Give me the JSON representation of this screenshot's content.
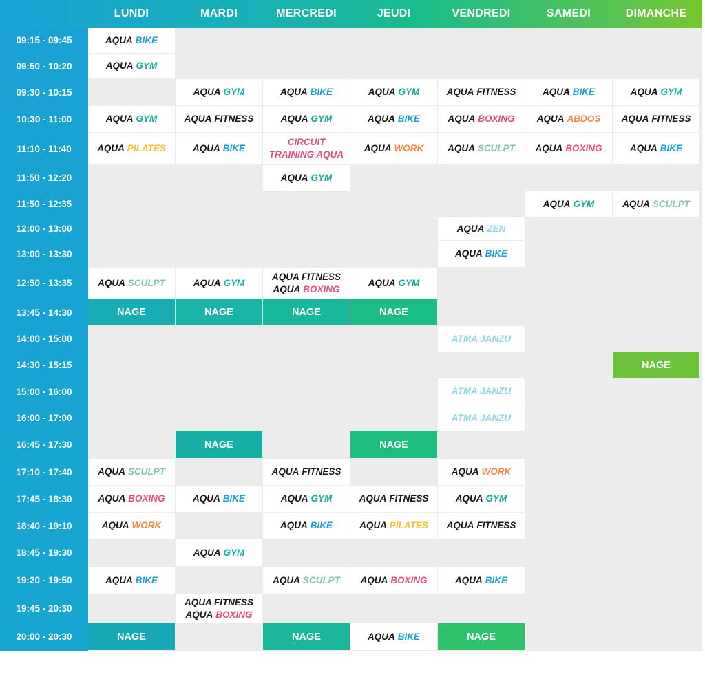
{
  "colors": {
    "header_gradient": [
      "#1aa3d6",
      "#17b0b8",
      "#1bbc8a",
      "#52c258",
      "#78c62e"
    ],
    "time_column": "#1aa2d4",
    "grid_background": "#ececec",
    "class_cell": "#ffffff",
    "AQUA": "#161616",
    "BIKE": "#1e9fd3",
    "GYM": "#17a9a0",
    "FITNESS": "#161616",
    "BOXING": "#e24f7f",
    "ABDOS": "#ef8a44",
    "PILATES": "#f2c12e",
    "WORK": "#ef8a44",
    "SCULPT": "#7fc5a8",
    "ZEN": "#8fd3e8",
    "ATMA JANZU": "#8fd3e8",
    "CIRCUIT TRAINING AQUA": "#e24f7f"
  },
  "days": [
    "LUNDI",
    "MARDI",
    "MERCREDI",
    "JEUDI",
    "VENDREDI",
    "SAMEDI",
    "DIMANCHE"
  ],
  "times": [
    "09:15 - 09:45",
    "09:50 - 10:20",
    "09:30 - 10:15",
    "10:30 - 11:00",
    "11:10 - 11:40",
    "11:50 - 12:20",
    "11:50 - 12:35",
    "12:00 - 13:00",
    "13:00 - 13:30",
    "12:50 - 13:35",
    "13:45 - 14:30",
    "14:00 - 15:00",
    "14:30 - 15:15",
    "15:00 - 16:00",
    "16:00 - 17:00",
    "16:45 - 17:30",
    "17:10 - 17:40",
    "17:45 - 18:30",
    "18:40 - 19:10",
    "18:45 - 19:30",
    "19:20 - 19:50",
    "19:45 - 20:30",
    "20:00 - 20:30"
  ],
  "cells": [
    {
      "r": 0,
      "d": 0,
      "lines": [
        [
          "AQUA",
          "BIKE"
        ]
      ]
    },
    {
      "r": 1,
      "d": 0,
      "lines": [
        [
          "AQUA",
          "GYM"
        ]
      ]
    },
    {
      "r": 2,
      "d": 1,
      "lines": [
        [
          "AQUA",
          "GYM"
        ]
      ]
    },
    {
      "r": 2,
      "d": 2,
      "lines": [
        [
          "AQUA",
          "BIKE"
        ]
      ]
    },
    {
      "r": 2,
      "d": 3,
      "lines": [
        [
          "AQUA",
          "GYM"
        ]
      ]
    },
    {
      "r": 2,
      "d": 4,
      "lines": [
        [
          "AQUA",
          "FITNESS"
        ]
      ]
    },
    {
      "r": 2,
      "d": 5,
      "lines": [
        [
          "AQUA",
          "BIKE"
        ]
      ]
    },
    {
      "r": 2,
      "d": 6,
      "lines": [
        [
          "AQUA",
          "GYM"
        ]
      ]
    },
    {
      "r": 3,
      "d": 0,
      "lines": [
        [
          "AQUA",
          "GYM"
        ]
      ]
    },
    {
      "r": 3,
      "d": 1,
      "lines": [
        [
          "AQUA",
          "FITNESS"
        ]
      ]
    },
    {
      "r": 3,
      "d": 2,
      "lines": [
        [
          "AQUA",
          "GYM"
        ]
      ]
    },
    {
      "r": 3,
      "d": 3,
      "lines": [
        [
          "AQUA",
          "BIKE"
        ]
      ]
    },
    {
      "r": 3,
      "d": 4,
      "lines": [
        [
          "AQUA",
          "BOXING"
        ]
      ]
    },
    {
      "r": 3,
      "d": 5,
      "lines": [
        [
          "AQUA",
          "ABDOS"
        ]
      ]
    },
    {
      "r": 3,
      "d": 6,
      "lines": [
        [
          "AQUA",
          "FITNESS"
        ]
      ]
    },
    {
      "r": 4,
      "d": 0,
      "lines": [
        [
          "AQUA",
          "PILATES"
        ]
      ]
    },
    {
      "r": 4,
      "d": 1,
      "lines": [
        [
          "AQUA",
          "BIKE"
        ]
      ]
    },
    {
      "r": 4,
      "d": 2,
      "lines": [
        [
          "CIRCUIT"
        ],
        [
          "TRAINING AQUA"
        ]
      ],
      "color": "CIRCUIT TRAINING AQUA"
    },
    {
      "r": 4,
      "d": 3,
      "lines": [
        [
          "AQUA",
          "WORK"
        ]
      ]
    },
    {
      "r": 4,
      "d": 4,
      "lines": [
        [
          "AQUA",
          "SCULPT"
        ]
      ]
    },
    {
      "r": 4,
      "d": 5,
      "lines": [
        [
          "AQUA",
          "BOXING"
        ]
      ]
    },
    {
      "r": 4,
      "d": 6,
      "lines": [
        [
          "AQUA",
          "BIKE"
        ]
      ]
    },
    {
      "r": 5,
      "d": 2,
      "lines": [
        [
          "AQUA",
          "GYM"
        ]
      ]
    },
    {
      "r": 6,
      "d": 5,
      "lines": [
        [
          "AQUA",
          "GYM"
        ]
      ]
    },
    {
      "r": 6,
      "d": 6,
      "lines": [
        [
          "AQUA",
          "SCULPT"
        ]
      ]
    },
    {
      "r": 7,
      "d": 4,
      "lines": [
        [
          "AQUA",
          "ZEN"
        ]
      ]
    },
    {
      "r": 8,
      "d": 4,
      "lines": [
        [
          "AQUA",
          "BIKE"
        ]
      ]
    },
    {
      "r": 9,
      "d": 0,
      "lines": [
        [
          "AQUA",
          "SCULPT"
        ]
      ]
    },
    {
      "r": 9,
      "d": 1,
      "lines": [
        [
          "AQUA",
          "GYM"
        ]
      ]
    },
    {
      "r": 9,
      "d": 2,
      "lines": [
        [
          "AQUA FITNESS"
        ],
        [
          "AQUA",
          "BOXING"
        ]
      ]
    },
    {
      "r": 9,
      "d": 3,
      "lines": [
        [
          "AQUA",
          "GYM"
        ]
      ]
    },
    {
      "r": 10,
      "d": 0,
      "nage": "NAGE",
      "color": "#19adb4"
    },
    {
      "r": 10,
      "d": 1,
      "nage": "NAGE",
      "color": "#19b3a7"
    },
    {
      "r": 10,
      "d": 2,
      "nage": "NAGE",
      "color": "#1ab89a"
    },
    {
      "r": 10,
      "d": 3,
      "nage": "NAGE",
      "color": "#1bbd86"
    },
    {
      "r": 11,
      "d": 4,
      "lines": [
        [
          "ATMA JANZU"
        ]
      ],
      "color": "ATMA JANZU"
    },
    {
      "r": 12,
      "d": 6,
      "nage": "NAGE",
      "color": "#6cc23a"
    },
    {
      "r": 13,
      "d": 4,
      "lines": [
        [
          "ATMA JANZU"
        ]
      ],
      "color": "ATMA JANZU"
    },
    {
      "r": 14,
      "d": 4,
      "lines": [
        [
          "ATMA JANZU"
        ]
      ],
      "color": "ATMA JANZU"
    },
    {
      "r": 15,
      "d": 1,
      "nage": "NAGE",
      "color": "#17afa6"
    },
    {
      "r": 15,
      "d": 3,
      "nage": "NAGE",
      "color": "#1cbd7e"
    },
    {
      "r": 16,
      "d": 0,
      "lines": [
        [
          "AQUA",
          "SCULPT"
        ]
      ]
    },
    {
      "r": 16,
      "d": 2,
      "lines": [
        [
          "AQUA",
          "FITNESS"
        ]
      ]
    },
    {
      "r": 16,
      "d": 4,
      "lines": [
        [
          "AQUA",
          "WORK"
        ]
      ]
    },
    {
      "r": 17,
      "d": 0,
      "lines": [
        [
          "AQUA",
          "BOXING"
        ]
      ]
    },
    {
      "r": 17,
      "d": 1,
      "lines": [
        [
          "AQUA",
          "BIKE"
        ]
      ]
    },
    {
      "r": 17,
      "d": 2,
      "lines": [
        [
          "AQUA",
          "GYM"
        ]
      ]
    },
    {
      "r": 17,
      "d": 3,
      "lines": [
        [
          "AQUA",
          "FITNESS"
        ]
      ]
    },
    {
      "r": 17,
      "d": 4,
      "lines": [
        [
          "AQUA",
          "GYM"
        ]
      ]
    },
    {
      "r": 18,
      "d": 0,
      "lines": [
        [
          "AQUA",
          "WORK"
        ]
      ]
    },
    {
      "r": 18,
      "d": 2,
      "lines": [
        [
          "AQUA",
          "BIKE"
        ]
      ]
    },
    {
      "r": 18,
      "d": 3,
      "lines": [
        [
          "AQUA",
          "PILATES"
        ]
      ]
    },
    {
      "r": 18,
      "d": 4,
      "lines": [
        [
          "AQUA",
          "FITNESS"
        ]
      ]
    },
    {
      "r": 19,
      "d": 1,
      "lines": [
        [
          "AQUA",
          "GYM"
        ]
      ]
    },
    {
      "r": 20,
      "d": 0,
      "lines": [
        [
          "AQUA",
          "BIKE"
        ]
      ]
    },
    {
      "r": 20,
      "d": 2,
      "lines": [
        [
          "AQUA",
          "SCULPT"
        ]
      ]
    },
    {
      "r": 20,
      "d": 3,
      "lines": [
        [
          "AQUA",
          "BOXING"
        ]
      ]
    },
    {
      "r": 20,
      "d": 4,
      "lines": [
        [
          "AQUA",
          "BIKE"
        ]
      ]
    },
    {
      "r": 21,
      "d": 1,
      "lines": [
        [
          "AQUA FITNESS"
        ],
        [
          "AQUA",
          "BOXING"
        ]
      ]
    },
    {
      "r": 22,
      "d": 0,
      "nage": "NAGE",
      "color": "#17a8b8"
    },
    {
      "r": 22,
      "d": 2,
      "nage": "NAGE",
      "color": "#1ab79a"
    },
    {
      "r": 22,
      "d": 3,
      "lines": [
        [
          "AQUA",
          "BIKE"
        ]
      ]
    },
    {
      "r": 22,
      "d": 4,
      "nage": "NAGE",
      "color": "#2ec06a"
    }
  ]
}
